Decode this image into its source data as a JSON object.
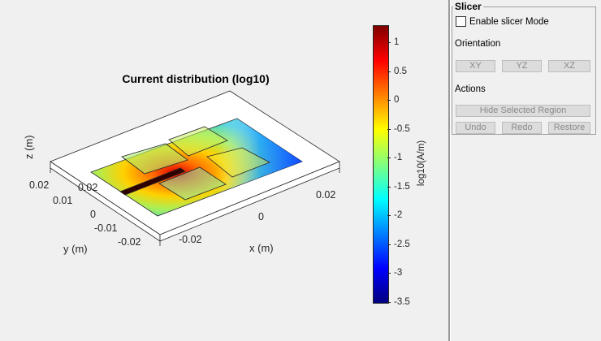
{
  "plot": {
    "title": "Current distribution (log10)",
    "x_label": "x (m)",
    "y_label": "y (m)",
    "z_label": "z (m)",
    "x_ticks": [
      "-0.02",
      "0",
      "0.02"
    ],
    "y_ticks": [
      "0.02",
      "0.01",
      "0",
      "-0.01",
      "-0.02"
    ],
    "z_ticks": [
      "0.02"
    ]
  },
  "colorbar": {
    "label": "log10(A/m)",
    "ticks": [
      "1",
      "0.5",
      "0",
      "-0.5",
      "-1",
      "-1.5",
      "-2",
      "-2.5",
      "-3",
      "-3.5"
    ],
    "range": [
      -3.5,
      1.3
    ],
    "colormap": "jet"
  },
  "panel": {
    "title": "Slicer",
    "enable_label": "Enable slicer Mode",
    "enable_checked": false,
    "orientation_label": "Orientation",
    "orientation_buttons": [
      "XY",
      "YZ",
      "XZ"
    ],
    "actions_label": "Actions",
    "hide_button": "Hide Selected Region",
    "action_buttons": [
      "Undo",
      "Redo",
      "Restore"
    ]
  }
}
